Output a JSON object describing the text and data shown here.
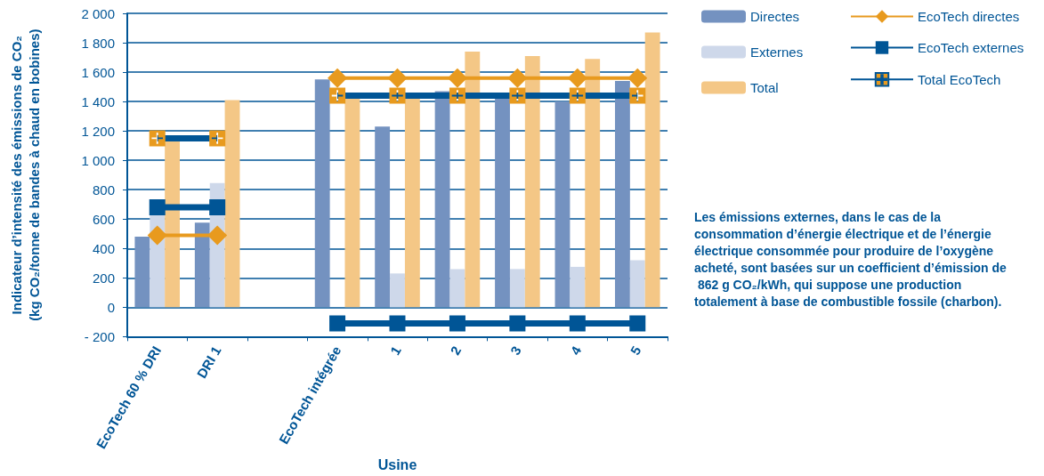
{
  "chart_data": {
    "type": "bar",
    "ylabel": "Indicateur d’intensité des émissions de CO₂\n(kg CO₂/tonne de bandes à chaud en bobines)",
    "xlabel": "Usine",
    "categories": [
      "EcoTech 60 % DRI",
      "DRI 1",
      null,
      "EcoTech intégrée",
      "1",
      "2",
      "3",
      "4",
      "5"
    ],
    "series": [
      {
        "name": "Directes",
        "color": "#7492c0",
        "values": [
          480,
          575,
          null,
          1550,
          1230,
          1470,
          1420,
          1400,
          1540
        ]
      },
      {
        "name": "Externes",
        "color": "#ced8ea",
        "values": [
          640,
          845,
          null,
          null,
          230,
          260,
          260,
          275,
          320
        ]
      },
      {
        "name": "Total",
        "color": "#f4c786",
        "values": [
          1130,
          1410,
          null,
          1420,
          1420,
          1740,
          1710,
          1690,
          1870
        ]
      },
      {
        "name": "EcoTech directes",
        "type": "line",
        "marker": "diamond",
        "color": "#e89a1e",
        "values": [
          490,
          490,
          null,
          1560,
          1560,
          1560,
          1560,
          1560,
          1560
        ]
      },
      {
        "name": "EcoTech externes",
        "type": "line",
        "marker": "square",
        "color": "#005596",
        "values": [
          680,
          680,
          null,
          -110,
          -110,
          -110,
          -110,
          -110,
          -110
        ]
      },
      {
        "name": "Total EcoTech",
        "type": "line",
        "marker": "cross",
        "color": "#005596",
        "values": [
          1150,
          1150,
          null,
          1440,
          1440,
          1440,
          1440,
          1440,
          1440
        ]
      }
    ],
    "ylim": [
      -200,
      2000
    ],
    "yticks": [
      {
        "value": -200,
        "label": "- 200"
      },
      0,
      200,
      400,
      600,
      800,
      {
        "value": 1000,
        "label": "1 000"
      },
      {
        "value": 1200,
        "label": "1 200"
      },
      {
        "value": 1400,
        "label": "1 400"
      },
      {
        "value": 1600,
        "label": "1 600"
      },
      {
        "value": 1800,
        "label": "1 800"
      },
      {
        "value": 2000,
        "label": "2 000"
      }
    ],
    "grid": "y",
    "legend": "top right",
    "annotations": [
      "Les émissions externes, dans le cas de la consommation d’énergie électrique et de l’énergie électrique consommée pour produire de l’oxygène acheté, sont basées sur un coefficient d’émission de 862 g CO₂/kWh, qui suppose une production totalement à base de combustible fossile (charbon)."
    ]
  }
}
